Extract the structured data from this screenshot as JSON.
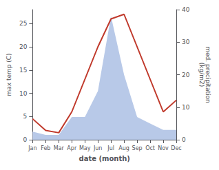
{
  "chart_data": {
    "type": "line",
    "categories": [
      "Jan",
      "Feb",
      "Mar",
      "Apr",
      "May",
      "Jun",
      "Jul",
      "Aug",
      "Sep",
      "Oct",
      "Nov",
      "Dec"
    ],
    "series": [
      {
        "type": "area",
        "color": "#b8c9e8",
        "axis": "y2",
        "values": [
          2.5,
          1.5,
          1.5,
          7.0,
          7.0,
          15.0,
          38.0,
          20.0,
          7.0,
          5.0,
          3.0,
          3.0
        ]
      },
      {
        "type": "line",
        "color": "#c0392b",
        "axis": "y",
        "values": [
          4.5,
          2.0,
          1.5,
          6.0,
          13.0,
          20.0,
          26.0,
          27.0,
          20.0,
          13.0,
          6.0,
          8.5
        ]
      }
    ],
    "x_label": "date (month)",
    "y_label": "max temp (C)",
    "y2_label": "med. precipitation\n(kg/m2)",
    "ylim": [
      0,
      28
    ],
    "yticks": [
      0,
      5,
      10,
      15,
      20,
      25
    ],
    "y2lim": [
      0,
      40
    ],
    "y2ticks": [
      0,
      10,
      20,
      30,
      40
    ],
    "grid": false
  }
}
